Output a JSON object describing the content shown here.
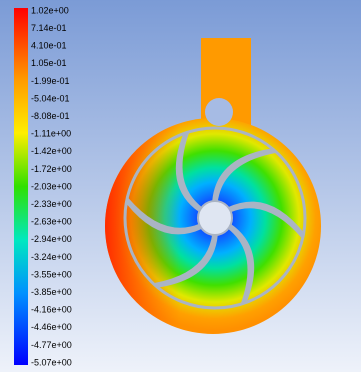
{
  "colorbar": {
    "labels": [
      "1.02e+00",
      "7.14e-01",
      "4.10e-01",
      "1.05e-01",
      "-1.99e-01",
      "-5.04e-01",
      "-8.08e-01",
      "-1.11e+00",
      "-1.42e+00",
      "-1.72e+00",
      "-2.03e+00",
      "-2.33e+00",
      "-2.63e+00",
      "-2.94e+00",
      "-3.24e+00",
      "-3.55e+00",
      "-3.85e+00",
      "-4.16e+00",
      "-4.46e+00",
      "-4.77e+00",
      "-5.07e+00"
    ]
  }
}
